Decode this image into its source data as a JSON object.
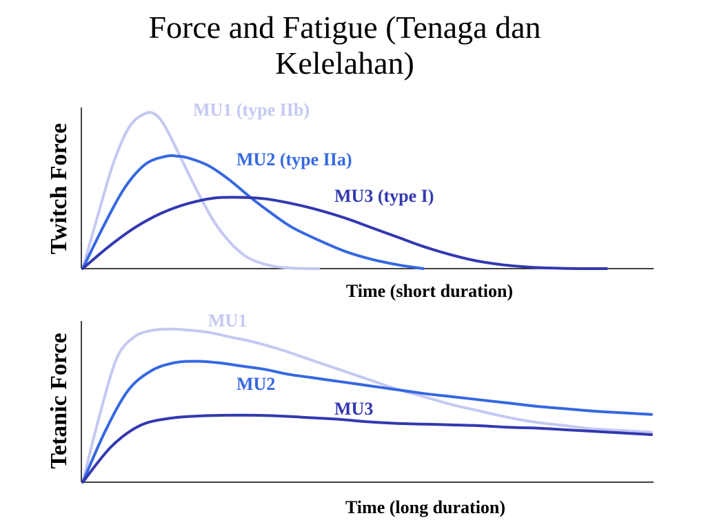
{
  "slide": {
    "title_line1": "Force and Fatigue (Tenaga dan",
    "title_line2": "Kelelahan)"
  },
  "colors": {
    "mu1": "#c4c8f2",
    "mu2": "#3568e0",
    "mu3": "#3338b0"
  },
  "chart_data": [
    {
      "type": "line",
      "title": "",
      "xlabel": "Time (short duration)",
      "ylabel": "Twitch Force",
      "xlim": [
        0,
        100
      ],
      "ylim": [
        0,
        100
      ],
      "grid": false,
      "series": [
        {
          "name": "MU1 (type IIb)",
          "color_key": "mu1",
          "x": [
            0,
            3,
            6,
            9,
            12,
            14,
            16,
            19,
            22,
            25,
            28,
            31,
            34,
            37,
            40,
            43,
            45
          ],
          "y": [
            0,
            35,
            68,
            90,
            98,
            97,
            88,
            68,
            48,
            30,
            17,
            8,
            3.5,
            1.2,
            0.3,
            0,
            0
          ]
        },
        {
          "name": "MU2 (type IIa)",
          "color_key": "mu2",
          "x": [
            0,
            4,
            8,
            12,
            16,
            18,
            20,
            24,
            28,
            32,
            36,
            40,
            45,
            50,
            55,
            60,
            65
          ],
          "y": [
            0,
            27,
            51,
            66,
            71,
            71,
            70,
            65,
            56,
            45,
            35,
            26,
            18,
            11,
            6,
            2.5,
            0
          ]
        },
        {
          "name": "MU3 (type I)",
          "color_key": "mu3",
          "x": [
            0,
            5,
            10,
            15,
            20,
            25,
            30,
            35,
            40,
            45,
            50,
            55,
            60,
            65,
            70,
            75,
            80,
            85,
            90,
            95,
            100
          ],
          "y": [
            0,
            14,
            26,
            35,
            41,
            44.5,
            45,
            44,
            41,
            37,
            32,
            26,
            20,
            14,
            9,
            5,
            2.5,
            1,
            0.3,
            0,
            0
          ]
        }
      ]
    },
    {
      "type": "line",
      "title": "",
      "xlabel": "Time (long duration)",
      "ylabel": "Tetanic Force",
      "xlim": [
        0,
        100
      ],
      "ylim": [
        0,
        100
      ],
      "grid": false,
      "series": [
        {
          "name": "MU1",
          "color_key": "mu1",
          "x": [
            0,
            3,
            6,
            9,
            12,
            15,
            18,
            22,
            26,
            30,
            35,
            40,
            45,
            50,
            55,
            60,
            65,
            70,
            75,
            80,
            85,
            90,
            95,
            100
          ],
          "y": [
            0,
            42,
            77,
            90,
            94,
            95,
            94.5,
            93,
            90,
            87,
            82,
            76,
            70,
            64,
            58,
            53,
            48,
            44,
            40,
            37,
            35,
            33,
            32,
            31
          ]
        },
        {
          "name": "MU2",
          "color_key": "mu2",
          "x": [
            0,
            4,
            8,
            12,
            16,
            20,
            24,
            28,
            32,
            36,
            40,
            45,
            50,
            55,
            60,
            65,
            70,
            75,
            80,
            85,
            90,
            95,
            100
          ],
          "y": [
            0,
            32,
            57,
            69,
            74,
            75,
            74,
            72,
            70,
            67,
            65,
            62.5,
            60,
            57.5,
            55,
            53,
            51,
            49,
            47,
            45.5,
            44,
            43,
            42
          ]
        },
        {
          "name": "MU3",
          "color_key": "mu3",
          "x": [
            0,
            5,
            10,
            15,
            20,
            25,
            30,
            35,
            40,
            45,
            50,
            55,
            60,
            65,
            70,
            75,
            80,
            85,
            90,
            95,
            100
          ],
          "y": [
            0,
            22,
            35,
            39.5,
            41,
            41.5,
            41.5,
            41,
            40,
            39,
            37.5,
            36.5,
            36,
            35.5,
            35,
            34,
            33.5,
            32.5,
            31.5,
            30.5,
            29.5
          ]
        }
      ]
    }
  ]
}
